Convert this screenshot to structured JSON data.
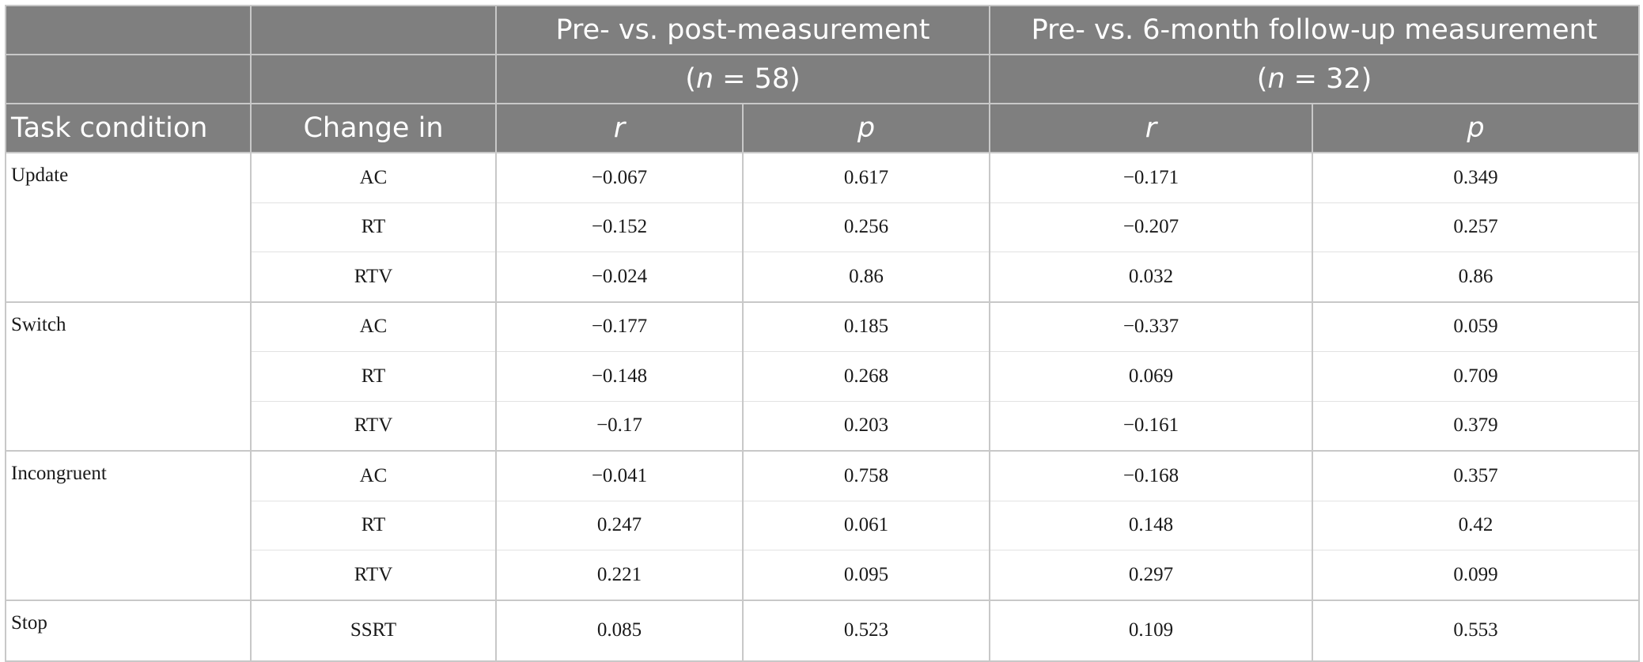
{
  "header": {
    "group1_title": "Pre- vs. post-measurement",
    "group1_n_label": "n",
    "group1_n_value": " = 58)",
    "group2_title": "Pre- vs. 6-month follow-up measurement",
    "group2_n_label": "n",
    "group2_n_value": " = 32)",
    "paren_open": "(",
    "col_task": "Task condition",
    "col_change": "Change in",
    "col_r1": "r",
    "col_p1": "p",
    "col_r2": "r",
    "col_p2": "p"
  },
  "groups": [
    {
      "condition": "Update",
      "rows": [
        {
          "change": "AC",
          "r1": "−0.067",
          "p1": "0.617",
          "r2": "−0.171",
          "p2": "0.349"
        },
        {
          "change": "RT",
          "r1": "−0.152",
          "p1": "0.256",
          "r2": "−0.207",
          "p2": "0.257"
        },
        {
          "change": "RTV",
          "r1": "−0.024",
          "p1": "0.86",
          "r2": "0.032",
          "p2": "0.86"
        }
      ]
    },
    {
      "condition": "Switch",
      "rows": [
        {
          "change": "AC",
          "r1": "−0.177",
          "p1": "0.185",
          "r2": "−0.337",
          "p2": "0.059"
        },
        {
          "change": "RT",
          "r1": "−0.148",
          "p1": "0.268",
          "r2": "0.069",
          "p2": "0.709"
        },
        {
          "change": "RTV",
          "r1": "−0.17",
          "p1": "0.203",
          "r2": "−0.161",
          "p2": "0.379"
        }
      ]
    },
    {
      "condition": "Incongruent",
      "rows": [
        {
          "change": "AC",
          "r1": "−0.041",
          "p1": "0.758",
          "r2": "−0.168",
          "p2": "0.357"
        },
        {
          "change": "RT",
          "r1": "0.247",
          "p1": "0.061",
          "r2": "0.148",
          "p2": "0.42"
        },
        {
          "change": "RTV",
          "r1": "0.221",
          "p1": "0.095",
          "r2": "0.297",
          "p2": "0.099"
        }
      ]
    },
    {
      "condition": "Stop",
      "rows": [
        {
          "change": "SSRT",
          "r1": "0.085",
          "p1": "0.523",
          "r2": "0.109",
          "p2": "0.553"
        }
      ]
    }
  ]
}
